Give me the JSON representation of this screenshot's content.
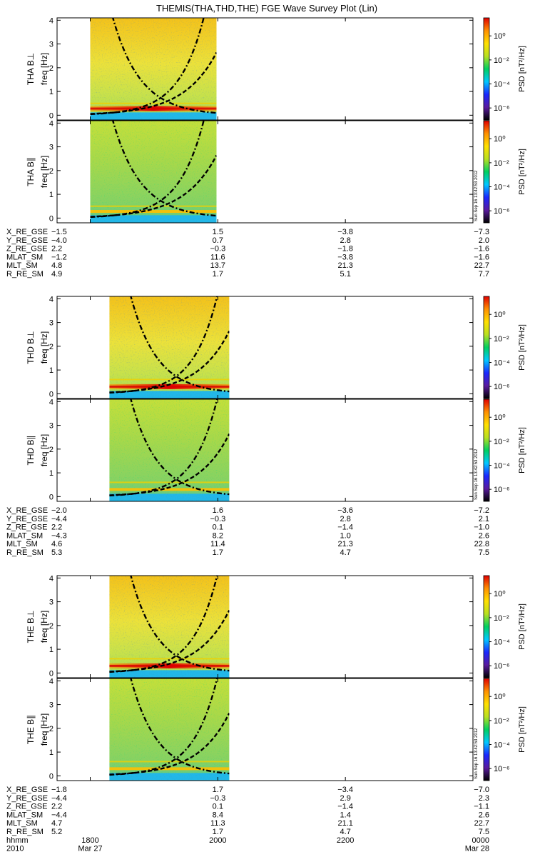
{
  "chart_data": {
    "type": "heatmap",
    "title": "THEMIS(THA,THD,THE) FGE Wave Survey Plot (Lin)",
    "colorbar": {
      "label": "PSD [nT²/Hz]",
      "scale": "log",
      "ticks": [
        "10⁰",
        "10⁻²",
        "10⁻⁴",
        "10⁻⁶"
      ],
      "tick_exponents": [
        0,
        -2,
        -4,
        -6
      ],
      "range": [
        -7,
        1.5
      ],
      "colors": [
        "#000000",
        "#5a1aa0",
        "#1a28ff",
        "#00c8ff",
        "#00d060",
        "#b8e020",
        "#ffe000",
        "#ff9000",
        "#e00000"
      ]
    },
    "x_axis": {
      "tick_labels": [
        "1800",
        "2000",
        "2200",
        "0000"
      ],
      "tick_hours": [
        18,
        20,
        22,
        24
      ],
      "range_hours": [
        17.48,
        24.0
      ],
      "row_label": "hhmm",
      "date_label": "2010",
      "date_ticks": [
        "Mar 27",
        "Mar 28"
      ],
      "date_tick_hours": [
        18,
        24
      ]
    },
    "y_axis": {
      "range": [
        -0.2,
        4.1
      ],
      "ticks": [
        0,
        1,
        2,
        3,
        4
      ],
      "label": "freq [Hz]"
    },
    "stamp": "Sun Sep 16 13:42:53 2012",
    "probes": [
      {
        "panels": [
          {
            "name": "THA B⊥",
            "ylabel": "freq [Hz]",
            "kind": "perp",
            "stamp": false
          },
          {
            "name": "THA B∥",
            "ylabel": "freq [Hz]",
            "kind": "para",
            "stamp": true
          }
        ],
        "data_span_hours": [
          18.0,
          19.98
        ],
        "strong_band_hz": 0.28,
        "weak_band_hz": 0.5,
        "ephemeris": [
          {
            "name": "X_RE_GSE",
            "values": [
              "−1.5",
              "1.5",
              "−3.8",
              "−7.3"
            ]
          },
          {
            "name": "Y_RE_GSE",
            "values": [
              "−4.0",
              "0.7",
              "2.8",
              "2.0"
            ]
          },
          {
            "name": "Z_RE_GSE",
            "values": [
              "2.2",
              "−0.3",
              "−1.8",
              "−1.6"
            ]
          },
          {
            "name": "MLAT_SM",
            "values": [
              "−1.2",
              "11.6",
              "−3.8",
              "−1.6"
            ]
          },
          {
            "name": "MLT_SM",
            "values": [
              "4.8",
              "13.7",
              "21.3",
              "22.7"
            ]
          },
          {
            "name": "R_RE_SM",
            "values": [
              "4.9",
              "1.7",
              "5.1",
              "7.7"
            ]
          }
        ]
      },
      {
        "panels": [
          {
            "name": "THD B⊥",
            "ylabel": "freq [Hz]",
            "kind": "perp",
            "stamp": false
          },
          {
            "name": "THD B∥",
            "ylabel": "freq [Hz]",
            "kind": "para",
            "stamp": true
          }
        ],
        "data_span_hours": [
          18.3,
          20.18
        ],
        "strong_band_hz": 0.3,
        "weak_band_hz": 0.6,
        "ephemeris": [
          {
            "name": "X_RE_GSE",
            "values": [
              "−2.0",
              "1.6",
              "−3.6",
              "−7.2"
            ]
          },
          {
            "name": "Y_RE_GSE",
            "values": [
              "−4.4",
              "−0.3",
              "2.8",
              "2.1"
            ]
          },
          {
            "name": "Z_RE_GSE",
            "values": [
              "2.2",
              "0.1",
              "−1.4",
              "−1.0"
            ]
          },
          {
            "name": "MLAT_SM",
            "values": [
              "−4.3",
              "8.2",
              "1.0",
              "2.6"
            ]
          },
          {
            "name": "MLT_SM",
            "values": [
              "4.6",
              "11.4",
              "21.3",
              "22.8"
            ]
          },
          {
            "name": "R_RE_SM",
            "values": [
              "5.3",
              "1.7",
              "4.7",
              "7.5"
            ]
          }
        ]
      },
      {
        "panels": [
          {
            "name": "THE B⊥",
            "ylabel": "freq [Hz]",
            "kind": "perp",
            "stamp": false
          },
          {
            "name": "THE B∥",
            "ylabel": "freq [Hz]",
            "kind": "para",
            "stamp": true
          }
        ],
        "data_span_hours": [
          18.3,
          20.18
        ],
        "strong_band_hz": 0.3,
        "weak_band_hz": 0.6,
        "ephemeris": [
          {
            "name": "X_RE_GSE",
            "values": [
              "−1.8",
              "1.7",
              "−3.4",
              "−7.0"
            ]
          },
          {
            "name": "Y_RE_GSE",
            "values": [
              "−4.4",
              "−0.3",
              "2.9",
              "2.3"
            ]
          },
          {
            "name": "Z_RE_GSE",
            "values": [
              "2.2",
              "0.1",
              "−1.4",
              "−1.1"
            ]
          },
          {
            "name": "MLAT_SM",
            "values": [
              "−4.4",
              "8.4",
              "1.4",
              "2.6"
            ]
          },
          {
            "name": "MLT_SM",
            "values": [
              "4.7",
              "11.3",
              "21.1",
              "22.7"
            ]
          },
          {
            "name": "R_RE_SM",
            "values": [
              "5.2",
              "1.7",
              "4.7",
              "7.5"
            ]
          }
        ]
      }
    ]
  }
}
